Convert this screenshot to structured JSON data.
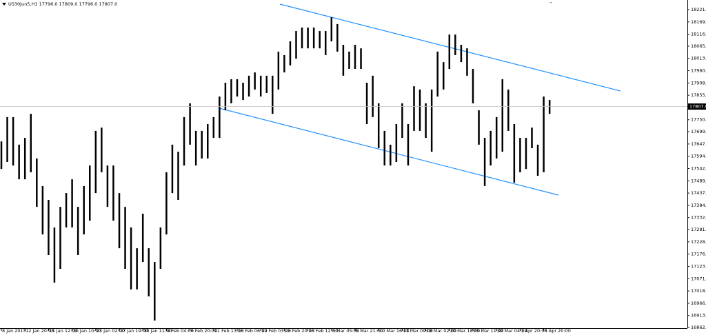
{
  "chart_data": {
    "type": "hlbar",
    "title": "US30Jun5,H1  17796.0 17809.0 17796.0 17807.0",
    "color": "#000000",
    "last_price": {
      "value": 17807,
      "label": "17807.0"
    },
    "high": [
      17658,
      17762,
      17762,
      17644,
      17673,
      17776,
      17585,
      17467,
      17408,
      17290,
      17378,
      17437,
      17496,
      17378,
      17467,
      17555,
      17703,
      17717,
      17555,
      17555,
      17437,
      17378,
      17290,
      17201,
      17349,
      17201,
      17142,
      17290,
      17526,
      17644,
      17614,
      17762,
      17821,
      17703,
      17703,
      17732,
      17762,
      17850,
      17909,
      17924,
      17924,
      17909,
      17939,
      17953,
      17939,
      17939,
      17939,
      18042,
      18027,
      18086,
      18130,
      18145,
      18145,
      18145,
      18130,
      18130,
      18189,
      18160,
      18071,
      18042,
      18071,
      18056,
      17909,
      17939,
      17821,
      17703,
      17644,
      17732,
      17821,
      17732,
      17894,
      17880,
      17821,
      17880,
      18042,
      17997,
      18115,
      18115,
      18071,
      18056,
      17968,
      17791,
      17673,
      17703,
      17762,
      17924,
      17880,
      17732,
      17673,
      17673,
      17717,
      17644,
      17850,
      17835
    ],
    "low": [
      17540,
      17570,
      17555,
      17496,
      17496,
      17526,
      17378,
      17260,
      17172,
      17054,
      17113,
      17290,
      17290,
      17172,
      17260,
      17319,
      17437,
      17526,
      17378,
      17319,
      17201,
      17113,
      17025,
      17025,
      17142,
      16995,
      16892,
      17113,
      17260,
      17437,
      17408,
      17555,
      17644,
      17555,
      17585,
      17585,
      17673,
      17673,
      17791,
      17821,
      17850,
      17835,
      17850,
      17880,
      17850,
      17865,
      17776,
      17880,
      17953,
      17983,
      18012,
      18056,
      18056,
      18056,
      18056,
      18027,
      18086,
      18042,
      17939,
      17968,
      17968,
      17968,
      17732,
      17762,
      17629,
      17555,
      17555,
      17570,
      17673,
      17555,
      17703,
      17703,
      17673,
      17614,
      17850,
      17880,
      17968,
      18027,
      17997,
      17939,
      17821,
      17644,
      17467,
      17555,
      17585,
      17614,
      17703,
      17482,
      17526,
      17540,
      17629,
      17511,
      17526,
      17776
    ],
    "ylim": [
      16859.5,
      18262.8
    ],
    "yticks": [
      18221.5,
      {
        "value": 18169,
        "label": "18169.0"
      },
      18116.5,
      18065.5,
      {
        "value": 18013,
        "label": "18013.0"
      },
      17960.5,
      {
        "value": 17908,
        "label": "17908.0"
      },
      17855.5,
      17750.6,
      17699.5,
      {
        "value": 17647,
        "label": "17647.0"
      },
      17594.5,
      {
        "value": 17542,
        "label": "17542.0"
      },
      17489.5,
      {
        "value": 17437,
        "label": "17437.0"
      },
      17384.5,
      {
        "value": 17332,
        "label": "17332.0"
      },
      {
        "value": 17281,
        "label": "17281.0"
      },
      17228.5,
      {
        "value": 17176,
        "label": "17176.0"
      },
      17123.5,
      {
        "value": 17071,
        "label": "17071.0"
      },
      17018.5,
      {
        "value": 16966,
        "label": "16966.0"
      },
      16913.5,
      16862.5
    ],
    "xticks": [
      {
        "value": 0,
        "label": "8 Jan 2015"
      },
      {
        "value": 4,
        "label": "12 Jan 20:00"
      },
      {
        "value": 8,
        "label": "15 Jan 12:00"
      },
      {
        "value": 12,
        "label": "20 Jan 10:00"
      },
      {
        "value": 16,
        "label": "23 Jan 02:00"
      },
      {
        "value": 20,
        "label": "27 Jan 19:00"
      },
      {
        "value": 24,
        "label": "30 Jan 11:00"
      },
      {
        "value": 28,
        "label": "4 Feb 04:00"
      },
      {
        "value": 32,
        "label": "6 Feb 20:00"
      },
      {
        "value": 36,
        "label": "11 Feb 13:00"
      },
      {
        "value": 40,
        "label": "16 Feb 06:00"
      },
      {
        "value": 44,
        "label": "19 Feb 03:00"
      },
      {
        "value": 48,
        "label": "23 Feb 20:00"
      },
      {
        "value": 52,
        "label": "26 Feb 12:00"
      },
      {
        "value": 56,
        "label": "3 Mar 05:00"
      },
      {
        "value": 60,
        "label": "5 Mar 21:00"
      },
      {
        "value": 64,
        "label": "10 Mar 16:00"
      },
      {
        "value": 68,
        "label": "13 Mar 09:00"
      },
      {
        "value": 72,
        "label": "18 Mar 02:00"
      },
      {
        "value": 76,
        "label": "20 Mar 18:00"
      },
      {
        "value": 80,
        "label": "25 Mar 11:00"
      },
      {
        "value": 84,
        "label": "30 Mar 04:00"
      },
      {
        "value": 88,
        "label": "1 Apr 20:00"
      },
      {
        "value": 92,
        "label": "6 Apr 20:00"
      }
    ]
  }
}
